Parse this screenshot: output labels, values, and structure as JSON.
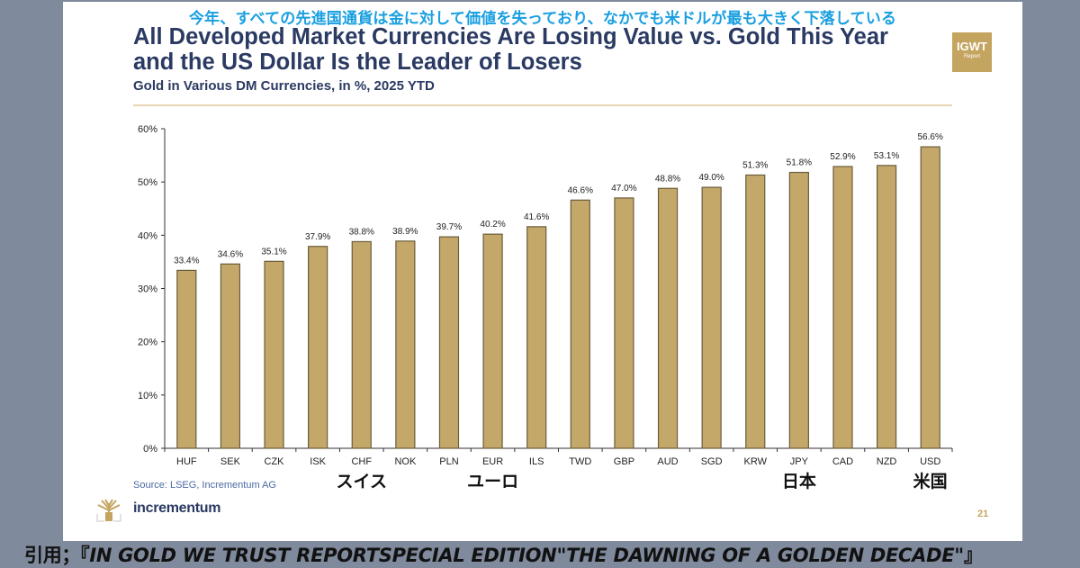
{
  "slide": {
    "jp_caption": "今年、すべての先進国通貨は金に対して価値を失っており、なかでも米ドルが最も大きく下落している",
    "title_line1": "All Developed Market Currencies Are Losing Value vs. Gold This Year",
    "title_line2": "and the US Dollar Is the Leader of Losers",
    "subtitle": "Gold in Various DM Currencies, in %, 2025 YTD",
    "badge_main": "IGWT",
    "badge_sub": "Report",
    "source": "Source: LSEG, Incrementum AG",
    "logo_text": "incrementum",
    "page_number": "21",
    "jp_labels": [
      {
        "category": "CHF",
        "text": "スイス"
      },
      {
        "category": "EUR",
        "text": "ユーロ"
      },
      {
        "category": "JPY",
        "text": "日本"
      },
      {
        "category": "USD",
        "text": "米国"
      }
    ],
    "colors": {
      "bar": "#c4a86a",
      "bar_edge": "#6b5c3c",
      "title": "#2b3a63",
      "jp_caption": "#1a9fe0",
      "accent_gold": "#c4a55f",
      "background": "#7f8a9c"
    }
  },
  "footer": {
    "prefix": "引用；『",
    "text": "IN GOLD WE TRUST REPORTSPECIAL EDITION\"THE DAWNING OF A GOLDEN DECADE\"",
    "suffix": "』"
  },
  "chart_data": {
    "type": "bar",
    "title": "Gold in Various DM Currencies, in %, 2025 YTD",
    "xlabel": "",
    "ylabel": "",
    "categories": [
      "HUF",
      "SEK",
      "CZK",
      "ISK",
      "CHF",
      "NOK",
      "PLN",
      "EUR",
      "ILS",
      "TWD",
      "GBP",
      "AUD",
      "SGD",
      "KRW",
      "JPY",
      "CAD",
      "NZD",
      "USD"
    ],
    "values": [
      33.4,
      34.6,
      35.1,
      37.9,
      38.8,
      38.9,
      39.7,
      40.2,
      41.6,
      46.6,
      47.0,
      48.8,
      49.0,
      51.3,
      51.8,
      52.9,
      53.1,
      56.6
    ],
    "data_labels": [
      "33.4%",
      "34.6%",
      "35.1%",
      "37.9%",
      "38.8%",
      "38.9%",
      "39.7%",
      "40.2%",
      "41.6%",
      "46.6%",
      "47.0%",
      "48.8%",
      "49.0%",
      "51.3%",
      "51.8%",
      "52.9%",
      "53.1%",
      "56.6%"
    ],
    "yticks": [
      0,
      10,
      20,
      30,
      40,
      50,
      60
    ],
    "ytick_labels": [
      "0%",
      "10%",
      "20%",
      "30%",
      "40%",
      "50%",
      "60%"
    ],
    "ylim": [
      0,
      60
    ],
    "grid": false,
    "legend": "none"
  }
}
